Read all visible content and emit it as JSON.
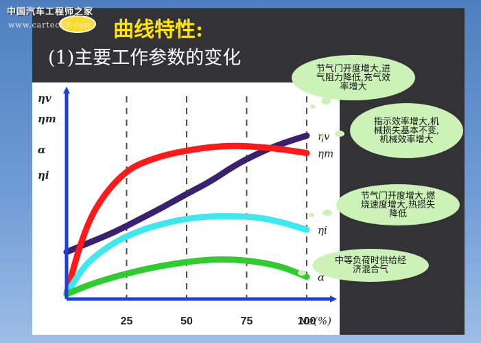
{
  "watermark": {
    "site_name": "中国汽车工程师之家",
    "url": "www.cartech8.com"
  },
  "title": "曲线特性:",
  "subtitle": "(1)主要工作参数的变化",
  "chart_data": {
    "type": "line",
    "x_label": "Ne(%)",
    "x_ticks": [
      25,
      50,
      75,
      100
    ],
    "y_labels": [
      "ηv",
      "ηm",
      "α",
      "ηi"
    ],
    "series": [
      {
        "name": "ηv",
        "color": "#3a2170",
        "points": [
          [
            0,
            38
          ],
          [
            10,
            46
          ],
          [
            20,
            54
          ],
          [
            30,
            64
          ],
          [
            40,
            74
          ],
          [
            50,
            85
          ],
          [
            60,
            95
          ],
          [
            70,
            108
          ],
          [
            80,
            118
          ],
          [
            90,
            126
          ],
          [
            100,
            132
          ]
        ]
      },
      {
        "name": "ηm",
        "color": "#ff1a1a",
        "points": [
          [
            0,
            4
          ],
          [
            5,
            40
          ],
          [
            10,
            66
          ],
          [
            15,
            82
          ],
          [
            20,
            94
          ],
          [
            25,
            103
          ],
          [
            30,
            109
          ],
          [
            40,
            116
          ],
          [
            50,
            120
          ],
          [
            60,
            123
          ],
          [
            70,
            124
          ],
          [
            80,
            123
          ],
          [
            90,
            121
          ],
          [
            100,
            118
          ]
        ]
      },
      {
        "name": "ηi",
        "color": "#3ee8ee",
        "points": [
          [
            0,
            4
          ],
          [
            5,
            20
          ],
          [
            10,
            32
          ],
          [
            20,
            46
          ],
          [
            30,
            55
          ],
          [
            40,
            61
          ],
          [
            50,
            65
          ],
          [
            60,
            67
          ],
          [
            70,
            67
          ],
          [
            80,
            66
          ],
          [
            90,
            62
          ],
          [
            100,
            56
          ]
        ]
      },
      {
        "name": "α",
        "color": "#2ecc2e",
        "points": [
          [
            0,
            4
          ],
          [
            10,
            12
          ],
          [
            20,
            18
          ],
          [
            30,
            23
          ],
          [
            40,
            27
          ],
          [
            50,
            30
          ],
          [
            60,
            32
          ],
          [
            70,
            32
          ],
          [
            80,
            30
          ],
          [
            90,
            26
          ],
          [
            100,
            18
          ]
        ]
      }
    ],
    "ylim": [
      0,
      150
    ],
    "xlim": [
      0,
      100
    ]
  },
  "callouts": [
    {
      "id": "throttle-pumping",
      "text": "节气门开度增大,进气阻力降低,充气效率增大"
    },
    {
      "id": "indicated-mechanical",
      "text": "指示效率增大,机械损失基本不变,机械效率增大"
    },
    {
      "id": "combustion-heat",
      "text": "节气门开度增大,燃烧速度增大,热损失降低"
    },
    {
      "id": "mixture",
      "text": "中等负荷时供给经济混合气"
    }
  ]
}
